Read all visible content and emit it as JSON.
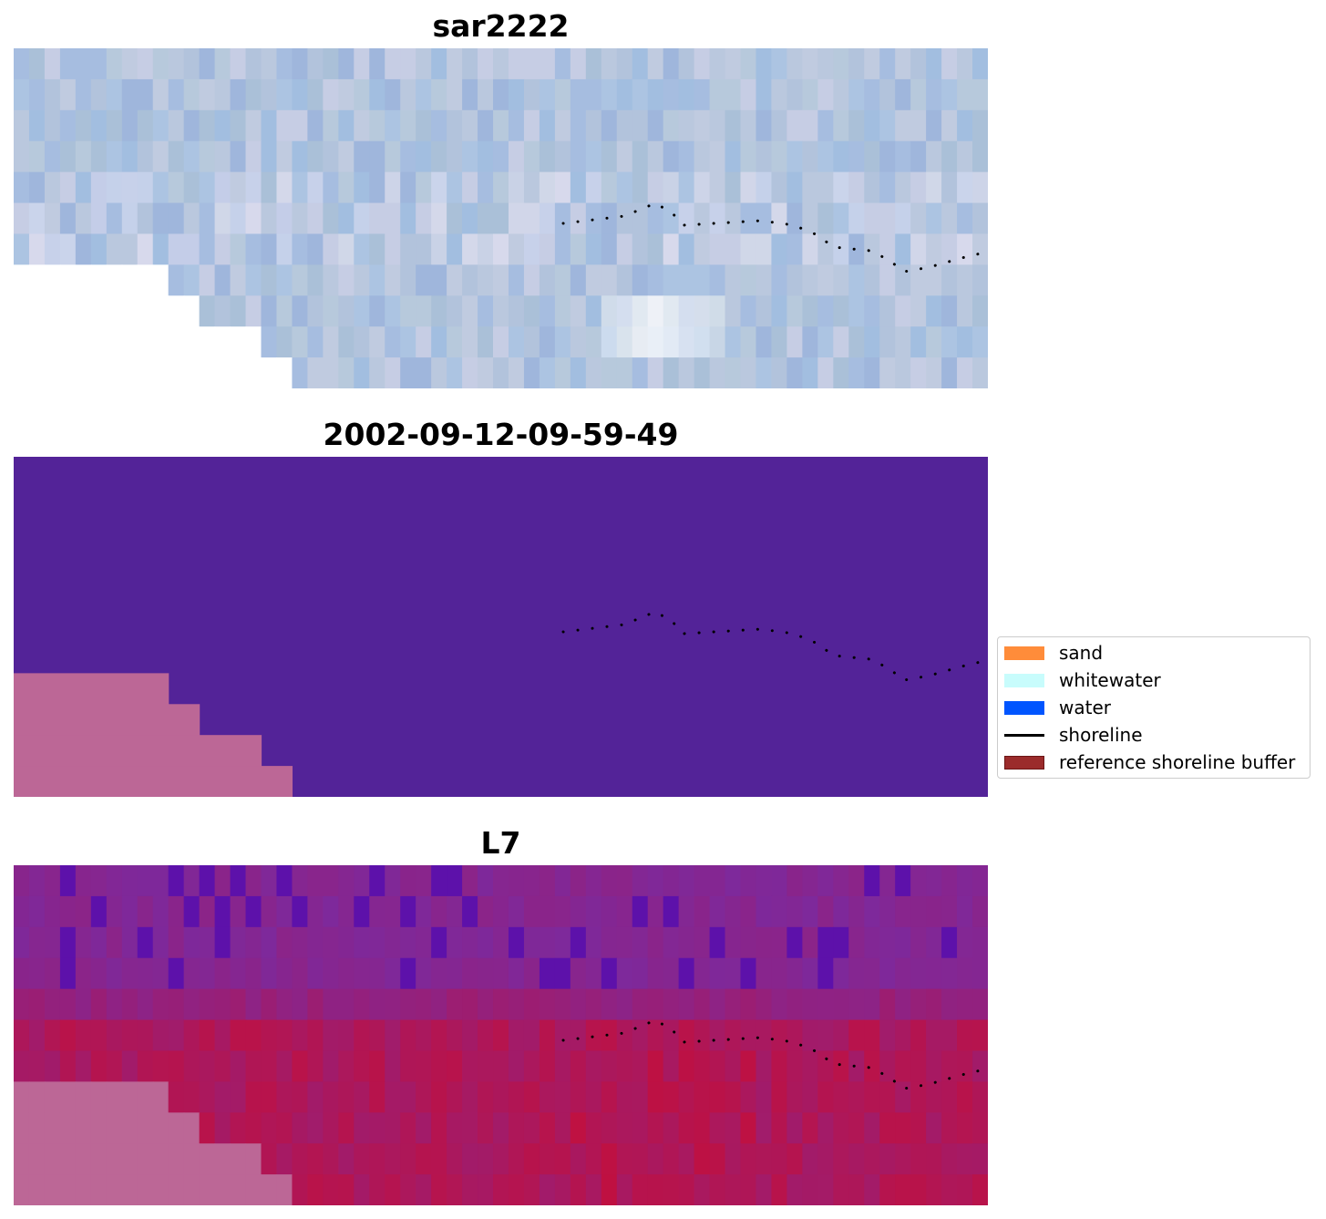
{
  "panels": [
    {
      "title": "sar2222",
      "kind": "rgb"
    },
    {
      "title": "2002-09-12-09-59-49",
      "kind": "classified"
    },
    {
      "title": "L7",
      "kind": "index"
    }
  ],
  "legend": {
    "items": [
      {
        "label": "sand",
        "color": "#ff8c3a",
        "type": "patch"
      },
      {
        "label": "whitewater",
        "color": "#c8fcfc",
        "type": "patch"
      },
      {
        "label": "water",
        "color": "#0055ff",
        "type": "patch"
      },
      {
        "label": "shoreline",
        "color": "#000000",
        "type": "line"
      },
      {
        "label": "reference shoreline buffer",
        "color": "#9b2b2b",
        "type": "patch"
      }
    ]
  },
  "colors": {
    "water_class": "#532398",
    "nodata": "#bc6796",
    "shoreline": "#000000",
    "rgb_base": "#a9bedd",
    "index_low": "#7a2aa0",
    "index_high": "#c01040"
  }
}
